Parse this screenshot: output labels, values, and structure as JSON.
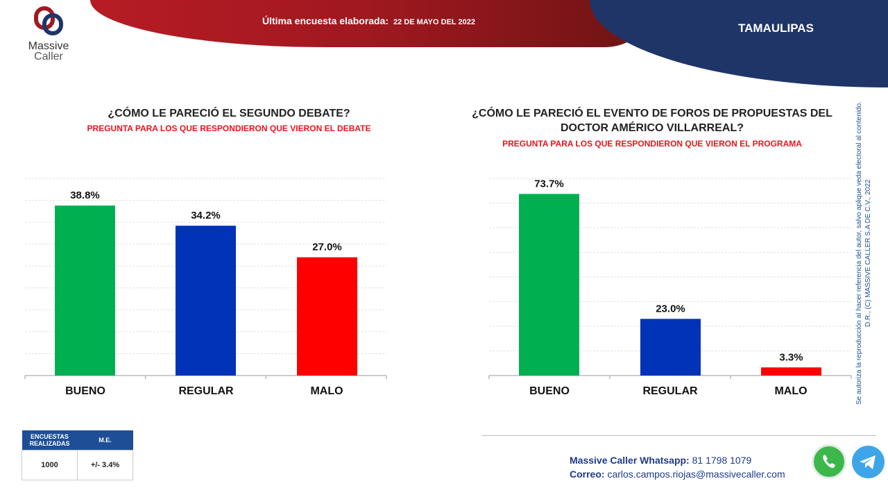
{
  "header": {
    "brand_line1": "Massive",
    "brand_line2": "Caller",
    "survey_label": "Última encuesta elaborada:",
    "survey_date": "22 DE MAYO DEL 2022",
    "state": "TAMAULIPAS"
  },
  "chart_data": [
    {
      "type": "bar",
      "title": "¿CÓMO LE PARECIÓ EL SEGUNDO DEBATE?",
      "subtitle": "PREGUNTA PARA LOS QUE RESPONDIERON QUE VIERON EL DEBATE",
      "categories": [
        "BUENO",
        "REGULAR",
        "MALO"
      ],
      "values": [
        38.8,
        34.2,
        27.0
      ],
      "labels": [
        "38.8%",
        "34.2%",
        "27.0%"
      ],
      "colors": [
        "#00b050",
        "#0033b8",
        "#ff0000"
      ],
      "ylim": [
        0,
        45
      ],
      "grid_step": 5
    },
    {
      "type": "bar",
      "title": "¿CÓMO LE PARECIÓ EL EVENTO DE FOROS DE PROPUESTAS DEL DOCTOR AMÉRICO VILLARREAL?",
      "title_line1": "¿CÓMO LE PARECIÓ EL EVENTO DE FOROS DE PROPUESTAS DEL",
      "title_line2": "DOCTOR AMÉRICO VILLARREAL?",
      "subtitle": "PREGUNTA PARA LOS QUE RESPONDIERON QUE VIERON EL PROGRAMA",
      "categories": [
        "BUENO",
        "REGULAR",
        "MALO"
      ],
      "values": [
        73.7,
        23.0,
        3.3
      ],
      "labels": [
        "73.7%",
        "23.0%",
        "3.3%"
      ],
      "colors": [
        "#00b050",
        "#0033b8",
        "#ff0000"
      ],
      "ylim": [
        0,
        80
      ],
      "grid_step": 10
    }
  ],
  "stats_table": {
    "col1": "ENCUESTAS REALIZADAS",
    "col2": "M.E.",
    "value1": "1000",
    "value2": "+/- 3.4%"
  },
  "copyright": {
    "line1": "D.R., (C) MASSIVE CALLER S.A DE C.V., 2022",
    "line2": "Se autoriza la reproducción al hacer referencia del autor, salvo aplique veda electoral al contenido."
  },
  "contact": {
    "whatsapp_label": "Massive Caller Whatsapp:",
    "whatsapp_number": "81 1798 1079",
    "email_label": "Correo:",
    "email": "carlos.campos.riojas@massivecaller.com"
  }
}
